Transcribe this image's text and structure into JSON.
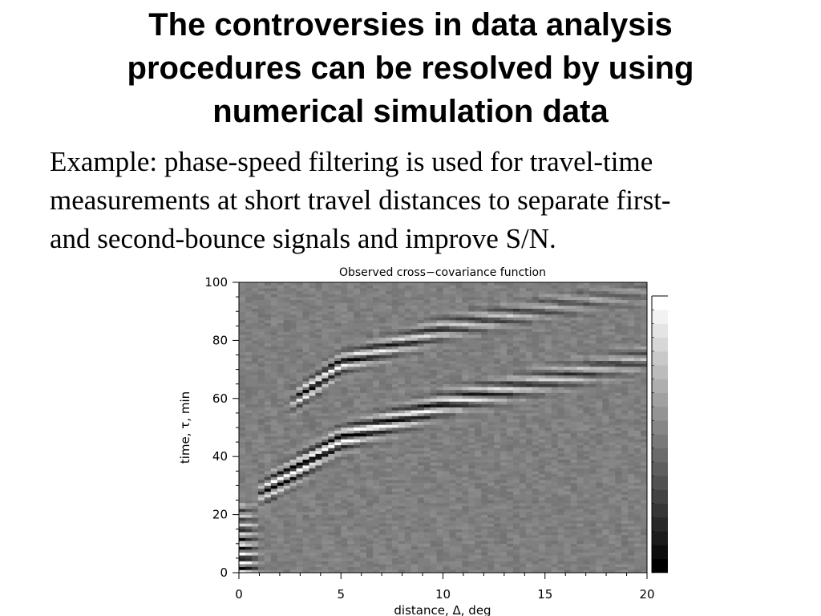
{
  "slide": {
    "title_lines": [
      "The controversies in data analysis",
      "procedures can be resolved by using",
      "numerical simulation data"
    ],
    "body_lines": [
      "Example: phase-speed filtering is used for travel-time",
      "measurements at short travel distances to separate first-",
      "and second-bounce signals and improve S/N."
    ]
  },
  "chart_data": {
    "type": "heatmap",
    "title": "Observed cross−covariance function",
    "xlabel": "distance, Δ, deg",
    "ylabel": "time, τ, min",
    "xlim": [
      0,
      20
    ],
    "ylim": [
      0,
      100
    ],
    "x_ticks": [
      "0",
      "5",
      "10",
      "15",
      "20"
    ],
    "y_ticks": [
      "0",
      "20",
      "40",
      "60",
      "80",
      "100"
    ],
    "colormap": "grayscale",
    "features": [
      {
        "name": "first-bounce ridge",
        "distance_deg": [
          1,
          5,
          10,
          15,
          20
        ],
        "time_min": [
          27,
          46,
          58,
          66,
          74
        ]
      },
      {
        "name": "second-bounce ridge",
        "distance_deg": [
          2.5,
          5,
          10,
          15,
          20
        ],
        "time_min": [
          58,
          72,
          84,
          91,
          97
        ]
      }
    ]
  }
}
